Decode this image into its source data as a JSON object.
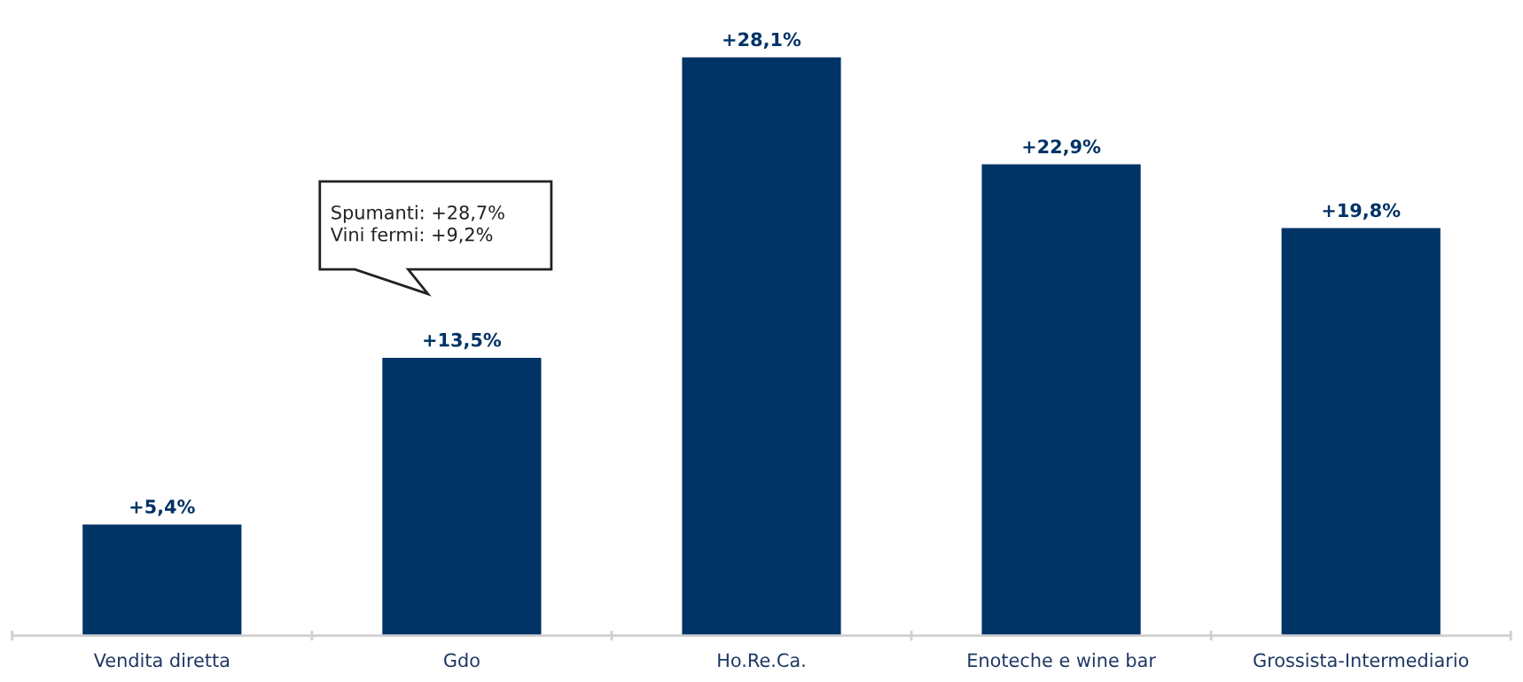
{
  "chart_data": {
    "type": "bar",
    "categories": [
      "Vendita diretta",
      "Gdo",
      "Ho.Re.Ca.",
      "Enoteche e wine bar",
      "Grossista-Intermediario"
    ],
    "values": [
      5.4,
      13.5,
      28.1,
      22.9,
      19.8
    ],
    "value_labels": [
      "+5,4%",
      "+13,5%",
      "+28,1%",
      "+22,9%",
      "+19,8%"
    ],
    "color": "#003366",
    "grid": false,
    "legend": false,
    "annotations": [
      "Spumanti: +28,7%\nVini fermi: +9,2%"
    ]
  }
}
